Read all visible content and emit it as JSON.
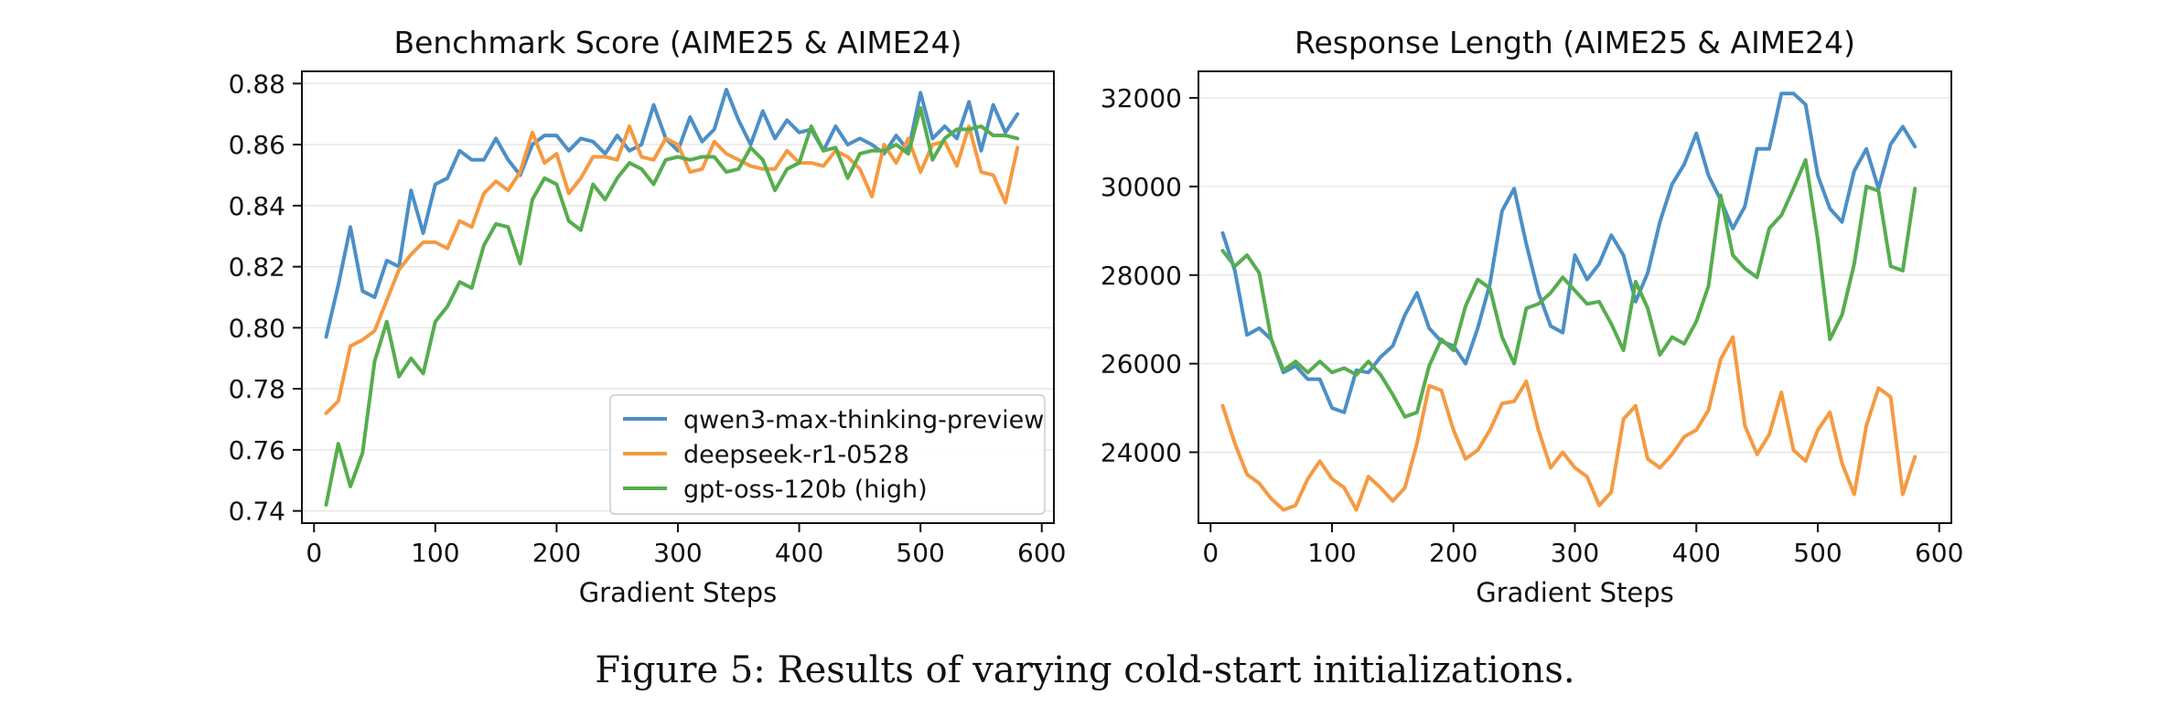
{
  "figure": {
    "caption": "Figure 5: Results of varying cold-start initializations."
  },
  "chart_data": [
    {
      "type": "line",
      "title": "Benchmark Score (AIME25 & AIME24)",
      "xlabel": "Gradient Steps",
      "ylabel": "",
      "xlim": [
        -10,
        610
      ],
      "ylim": [
        0.736,
        0.884
      ],
      "xticks": [
        0,
        100,
        200,
        300,
        400,
        500,
        600
      ],
      "yticks": [
        0.74,
        0.76,
        0.78,
        0.8,
        0.82,
        0.84,
        0.86,
        0.88
      ],
      "ytick_labels": [
        "0.74",
        "0.76",
        "0.78",
        "0.80",
        "0.82",
        "0.84",
        "0.86",
        "0.88"
      ],
      "grid": "horizontal",
      "legend_position": "lower-right",
      "x": [
        10,
        20,
        30,
        40,
        50,
        60,
        70,
        80,
        90,
        100,
        110,
        120,
        130,
        140,
        150,
        160,
        170,
        180,
        190,
        200,
        210,
        220,
        230,
        240,
        250,
        260,
        270,
        280,
        290,
        300,
        310,
        320,
        330,
        340,
        350,
        360,
        370,
        380,
        390,
        400,
        410,
        420,
        430,
        440,
        450,
        460,
        470,
        480,
        490,
        500,
        510,
        520,
        530,
        540,
        550,
        560,
        570,
        580
      ],
      "series": [
        {
          "name": "qwen3-max-thinking-preview",
          "color": "#4c8fc6",
          "values": [
            0.797,
            0.814,
            0.833,
            0.812,
            0.81,
            0.822,
            0.82,
            0.845,
            0.831,
            0.847,
            0.849,
            0.858,
            0.855,
            0.855,
            0.862,
            0.855,
            0.85,
            0.86,
            0.863,
            0.863,
            0.858,
            0.862,
            0.861,
            0.857,
            0.863,
            0.858,
            0.86,
            0.873,
            0.862,
            0.858,
            0.869,
            0.861,
            0.865,
            0.878,
            0.868,
            0.86,
            0.871,
            0.862,
            0.868,
            0.864,
            0.865,
            0.858,
            0.866,
            0.86,
            0.862,
            0.86,
            0.857,
            0.863,
            0.858,
            0.877,
            0.862,
            0.866,
            0.862,
            0.874,
            0.858,
            0.873,
            0.864,
            0.87
          ]
        },
        {
          "name": "deepseek-r1-0528",
          "color": "#f59a42",
          "values": [
            0.772,
            0.776,
            0.794,
            0.796,
            0.799,
            0.809,
            0.819,
            0.824,
            0.828,
            0.828,
            0.826,
            0.835,
            0.833,
            0.844,
            0.848,
            0.845,
            0.851,
            0.864,
            0.854,
            0.857,
            0.844,
            0.849,
            0.856,
            0.856,
            0.855,
            0.866,
            0.856,
            0.855,
            0.862,
            0.86,
            0.851,
            0.852,
            0.861,
            0.857,
            0.855,
            0.853,
            0.852,
            0.852,
            0.858,
            0.854,
            0.854,
            0.853,
            0.858,
            0.856,
            0.852,
            0.843,
            0.86,
            0.854,
            0.862,
            0.851,
            0.86,
            0.861,
            0.853,
            0.866,
            0.851,
            0.85,
            0.841,
            0.859
          ]
        },
        {
          "name": "gpt-oss-120b (high)",
          "color": "#56ad4e",
          "values": [
            0.742,
            0.762,
            0.748,
            0.759,
            0.789,
            0.802,
            0.784,
            0.79,
            0.785,
            0.802,
            0.807,
            0.815,
            0.813,
            0.827,
            0.834,
            0.833,
            0.821,
            0.842,
            0.849,
            0.847,
            0.835,
            0.832,
            0.847,
            0.842,
            0.849,
            0.854,
            0.852,
            0.847,
            0.855,
            0.856,
            0.855,
            0.856,
            0.856,
            0.851,
            0.852,
            0.859,
            0.855,
            0.845,
            0.852,
            0.854,
            0.866,
            0.858,
            0.859,
            0.849,
            0.857,
            0.858,
            0.858,
            0.86,
            0.857,
            0.872,
            0.855,
            0.862,
            0.865,
            0.865,
            0.866,
            0.863,
            0.863,
            0.862
          ]
        }
      ]
    },
    {
      "type": "line",
      "title": "Response Length (AIME25 & AIME24)",
      "xlabel": "Gradient Steps",
      "ylabel": "",
      "xlim": [
        -10,
        610
      ],
      "ylim": [
        22400,
        32600
      ],
      "xticks": [
        0,
        100,
        200,
        300,
        400,
        500,
        600
      ],
      "yticks": [
        24000,
        26000,
        28000,
        30000,
        32000
      ],
      "ytick_labels": [
        "24000",
        "26000",
        "28000",
        "30000",
        "32000"
      ],
      "grid": "horizontal",
      "legend_position": "none",
      "x": [
        10,
        20,
        30,
        40,
        50,
        60,
        70,
        80,
        90,
        100,
        110,
        120,
        130,
        140,
        150,
        160,
        170,
        180,
        190,
        200,
        210,
        220,
        230,
        240,
        250,
        260,
        270,
        280,
        290,
        300,
        310,
        320,
        330,
        340,
        350,
        360,
        370,
        380,
        390,
        400,
        410,
        420,
        430,
        440,
        450,
        460,
        470,
        480,
        490,
        500,
        510,
        520,
        530,
        540,
        550,
        560,
        570,
        580
      ],
      "series": [
        {
          "name": "qwen3-max-thinking-preview",
          "color": "#4c8fc6",
          "values": [
            28950,
            28100,
            26650,
            26800,
            26550,
            25800,
            25950,
            25650,
            25650,
            25000,
            24900,
            25850,
            25800,
            26150,
            26400,
            27100,
            27600,
            26800,
            26500,
            26400,
            26000,
            26800,
            27800,
            29450,
            29950,
            28700,
            27600,
            26850,
            26700,
            28450,
            27900,
            28250,
            28900,
            28450,
            27400,
            28050,
            29200,
            30050,
            30500,
            31200,
            30250,
            29700,
            29050,
            29550,
            30850,
            30850,
            32100,
            32100,
            31850,
            30250,
            29500,
            29200,
            30350,
            30850,
            29950,
            30950,
            31350,
            30900
          ]
        },
        {
          "name": "deepseek-r1-0528",
          "color": "#f59a42",
          "values": [
            25050,
            24200,
            23500,
            23300,
            22950,
            22700,
            22800,
            23400,
            23800,
            23400,
            23200,
            22700,
            23450,
            23200,
            22900,
            23200,
            24200,
            25500,
            25400,
            24500,
            23850,
            24050,
            24500,
            25100,
            25150,
            25600,
            24500,
            23650,
            24000,
            23650,
            23450,
            22800,
            23100,
            24750,
            25050,
            23850,
            23650,
            23950,
            24350,
            24500,
            24950,
            26100,
            26600,
            24600,
            23950,
            24400,
            25350,
            24050,
            23800,
            24500,
            24900,
            23750,
            23050,
            24600,
            25450,
            25250,
            23050,
            23900
          ]
        },
        {
          "name": "gpt-oss-120b (high)",
          "color": "#56ad4e",
          "values": [
            28550,
            28200,
            28450,
            28050,
            26550,
            25850,
            26050,
            25800,
            26050,
            25800,
            25900,
            25750,
            26050,
            25750,
            25300,
            24800,
            24900,
            25950,
            26550,
            26300,
            27300,
            27900,
            27700,
            26600,
            26000,
            27250,
            27350,
            27600,
            27950,
            27650,
            27350,
            27400,
            26900,
            26300,
            27850,
            27250,
            26200,
            26600,
            26450,
            26950,
            27750,
            29800,
            28450,
            28150,
            27950,
            29050,
            29350,
            29950,
            30600,
            28800,
            26550,
            27100,
            28250,
            30000,
            29900,
            28200,
            28100,
            29950
          ]
        }
      ]
    }
  ]
}
